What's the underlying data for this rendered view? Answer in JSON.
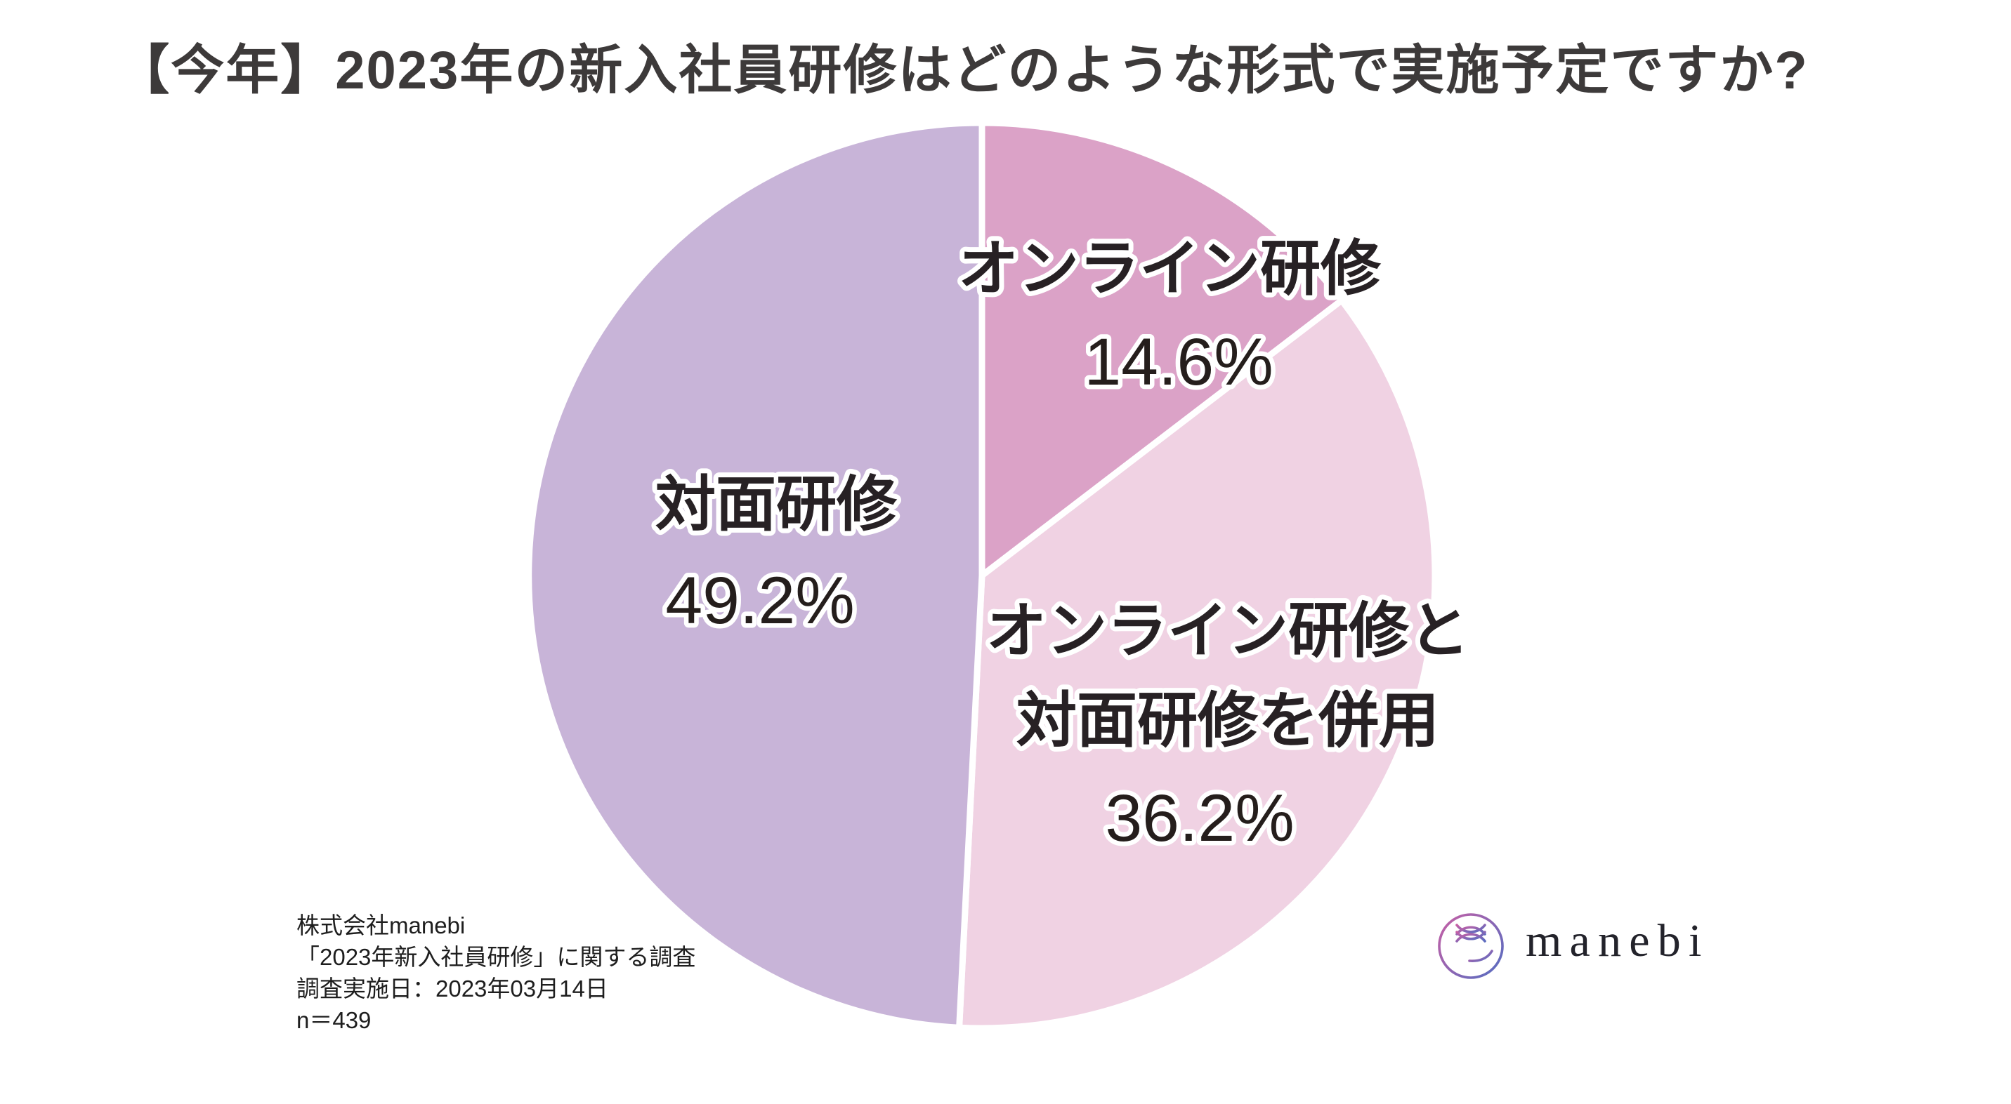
{
  "title": "【今年】2023年の新入社員研修はどのような形式で実施予定ですか?",
  "chart_data": {
    "type": "pie",
    "title": "【今年】2023年の新入社員研修はどのような形式で実施予定ですか?",
    "start_angle_deg_from_north_clockwise": 0,
    "units": "%",
    "total": 100,
    "legend_position": "labels-on-slices",
    "separator_color": "#ffffff",
    "slices": [
      {
        "label": "オンライン研修",
        "label_lines": [
          "オンライン研修"
        ],
        "value": 14.6,
        "pct_label": "14.6%",
        "color": "#dba2c7"
      },
      {
        "label": "オンライン研修と対面研修を併用",
        "label_lines": [
          "オンライン研修と",
          "対面研修を併用"
        ],
        "value": 36.2,
        "pct_label": "36.2%",
        "color": "#f0d2e3"
      },
      {
        "label": "対面研修",
        "label_lines": [
          "対面研修"
        ],
        "value": 49.2,
        "pct_label": "49.2%",
        "color": "#c8b4d8"
      }
    ]
  },
  "source": {
    "line1": "株式会社manebi",
    "line2": "「2023年新入社員研修」に関する調査",
    "line3": "調査実施日：2023年03月14日",
    "line4": "n＝439"
  },
  "logo": {
    "word": "manebi",
    "gradient_start": "#c75fa5",
    "gradient_end": "#5e6cbf"
  },
  "colors": {
    "background": "#ffffff",
    "title_text": "#3d3a3a",
    "label_text": "#272124",
    "label_outline": "#ffffff",
    "source_text": "#1e1e1e",
    "logo_word": "#23232b"
  }
}
